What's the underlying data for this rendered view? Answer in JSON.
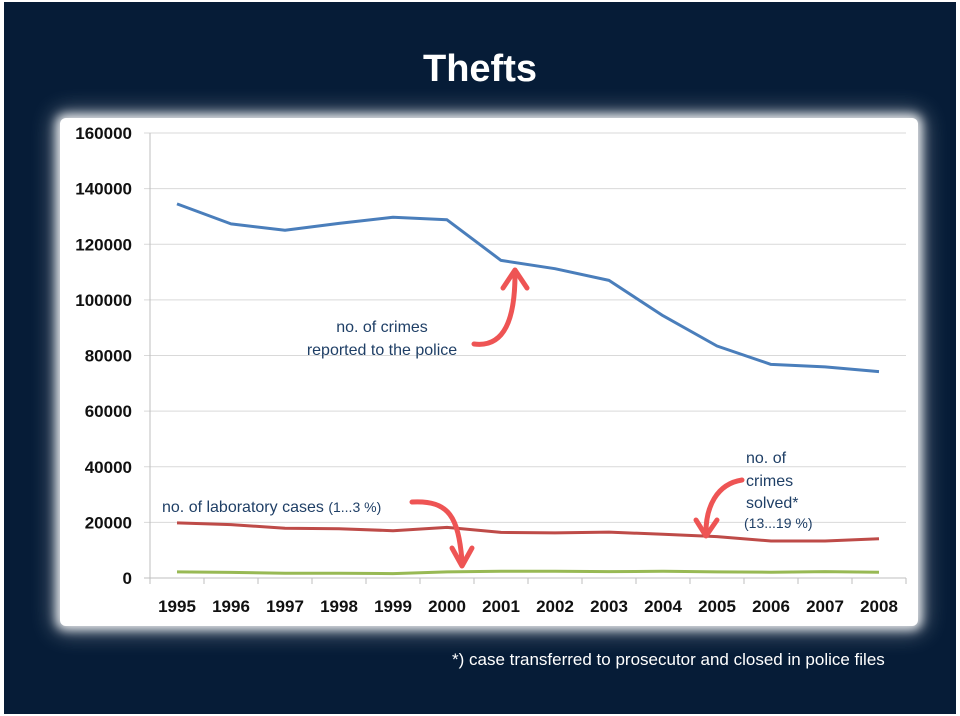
{
  "slide_title": "Thefts",
  "footnote": "*) case transferred to prosecutor and closed in police files",
  "colors": {
    "background": "#061c37",
    "reported": "#4a7ebb",
    "solved": "#be4b48",
    "laboratory": "#98b954",
    "arrow": "#ee5454",
    "grid": "#d9d9d9"
  },
  "annotations": {
    "reported_line1": "no. of crimes",
    "reported_line2": "reported to the police",
    "laboratory_label": "no. of laboratory cases",
    "laboratory_range": "(1...3 %)",
    "solved_line1": "no. of",
    "solved_line2": "crimes",
    "solved_line3": "solved*",
    "solved_range": "(13...19 %)"
  },
  "chart_data": {
    "type": "line",
    "title": "Thefts",
    "xlabel": "",
    "ylabel": "",
    "categories": [
      "1995",
      "1996",
      "1997",
      "1998",
      "1999",
      "2000",
      "2001",
      "2002",
      "2003",
      "2004",
      "2005",
      "2006",
      "2007",
      "2008"
    ],
    "ylim": [
      0,
      160000
    ],
    "yticks": [
      "0",
      "20000",
      "40000",
      "60000",
      "80000",
      "100000",
      "120000",
      "140000",
      "160000"
    ],
    "grid": true,
    "series": [
      {
        "key": "reported",
        "values": [
          134500,
          127300,
          125000,
          127500,
          129700,
          128800,
          114200,
          111200,
          107000,
          94300,
          83400,
          76800,
          75900,
          74200
        ]
      },
      {
        "key": "solved",
        "values": [
          19800,
          19200,
          17900,
          17700,
          17000,
          18200,
          16400,
          16200,
          16500,
          15700,
          14900,
          13300,
          13300,
          14100
        ]
      },
      {
        "key": "laboratory",
        "values": [
          2200,
          2000,
          1700,
          1700,
          1600,
          2200,
          2400,
          2400,
          2300,
          2400,
          2200,
          2100,
          2300,
          2100
        ]
      }
    ]
  }
}
